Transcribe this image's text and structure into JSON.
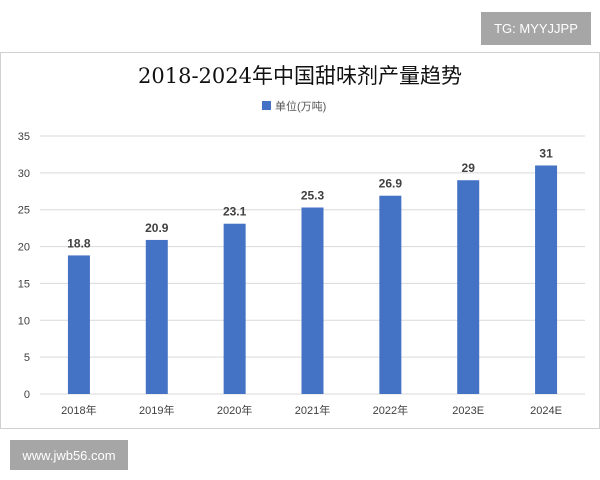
{
  "watermarks": {
    "top": "TG: MYYJJPP",
    "bottom": "www.jwb56.com"
  },
  "colors": {
    "bar": "#4472c4",
    "grid": "#d9d9d9"
  },
  "chart_data": {
    "type": "bar",
    "title": "2018-2024年中国甜味剂产量趋势",
    "legend": {
      "label": "单位(万吨)",
      "position": "top-center"
    },
    "categories": [
      "2018年",
      "2019年",
      "2020年",
      "2021年",
      "2022年",
      "2023E",
      "2024E"
    ],
    "values": [
      18.8,
      20.9,
      23.1,
      25.3,
      26.9,
      29,
      31
    ],
    "data_labels": [
      "18.8",
      "20.9",
      "23.1",
      "25.3",
      "26.9",
      "29",
      "31"
    ],
    "ylim": [
      0,
      35
    ],
    "yticks": [
      0,
      5,
      10,
      15,
      20,
      25,
      30,
      35
    ],
    "grid": true,
    "xlabel": "",
    "ylabel": ""
  }
}
